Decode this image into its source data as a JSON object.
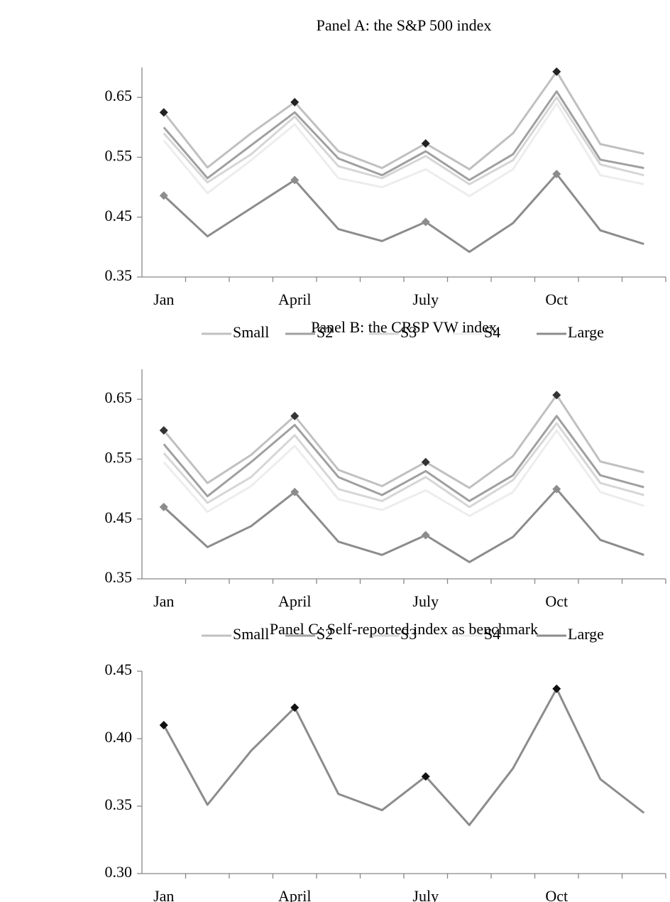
{
  "chart_data": [
    {
      "type": "line",
      "title": "Panel A: the S&P 500 index",
      "categories": [
        "Jan",
        null,
        null,
        "April",
        null,
        null,
        "July",
        null,
        null,
        "Oct",
        null,
        null
      ],
      "ylim": [
        0.35,
        0.7
      ],
      "yticks": [
        {
          "value": 0.35,
          "label": "0.35"
        },
        {
          "value": 0.45,
          "label": "0.45"
        },
        {
          "value": 0.55,
          "label": "0.55"
        },
        {
          "value": 0.65,
          "label": "0.65"
        }
      ],
      "legend": "bottom",
      "series": [
        {
          "name": "Small",
          "color": "#c0c0c0",
          "marker_color": "#222222",
          "values": [
            0.625,
            0.533,
            0.59,
            0.642,
            0.56,
            0.532,
            0.573,
            0.53,
            0.59,
            0.693,
            0.572,
            0.556
          ]
        },
        {
          "name": "S2",
          "color": "#a0a0a0",
          "values": [
            0.6,
            0.515,
            0.57,
            0.625,
            0.548,
            0.52,
            0.56,
            0.512,
            0.555,
            0.66,
            0.546,
            0.532
          ]
        },
        {
          "name": "S3",
          "color": "#d6d6d6",
          "values": [
            0.59,
            0.508,
            0.555,
            0.618,
            0.535,
            0.515,
            0.552,
            0.505,
            0.545,
            0.65,
            0.538,
            0.52
          ]
        },
        {
          "name": "S4",
          "color": "#ededed",
          "values": [
            0.578,
            0.49,
            0.545,
            0.605,
            0.515,
            0.5,
            0.53,
            0.485,
            0.53,
            0.64,
            0.52,
            0.505
          ]
        },
        {
          "name": "Large",
          "color": "#8c8c8c",
          "marker_color": "#8c8c8c",
          "values": [
            0.486,
            0.418,
            0.465,
            0.512,
            0.43,
            0.41,
            0.442,
            0.392,
            0.44,
            0.522,
            0.428,
            0.405
          ]
        }
      ]
    },
    {
      "type": "line",
      "title": "Panel B: the CRSP VW index",
      "categories": [
        "Jan",
        null,
        null,
        "April",
        null,
        null,
        "July",
        null,
        null,
        "Oct",
        null,
        null
      ],
      "ylim": [
        0.35,
        0.7
      ],
      "yticks": [
        {
          "value": 0.35,
          "label": "0.35"
        },
        {
          "value": 0.45,
          "label": "0.45"
        },
        {
          "value": 0.55,
          "label": "0.55"
        },
        {
          "value": 0.65,
          "label": "0.65"
        }
      ],
      "legend": "bottom",
      "series": [
        {
          "name": "Small",
          "color": "#c0c0c0",
          "marker_color": "#333333",
          "values": [
            0.598,
            0.51,
            0.557,
            0.622,
            0.532,
            0.505,
            0.545,
            0.502,
            0.555,
            0.657,
            0.546,
            0.528
          ]
        },
        {
          "name": "S2",
          "color": "#a0a0a0",
          "values": [
            0.575,
            0.488,
            0.545,
            0.607,
            0.52,
            0.49,
            0.53,
            0.48,
            0.523,
            0.622,
            0.523,
            0.503
          ]
        },
        {
          "name": "S3",
          "color": "#d6d6d6",
          "values": [
            0.56,
            0.477,
            0.52,
            0.59,
            0.5,
            0.48,
            0.52,
            0.47,
            0.515,
            0.61,
            0.51,
            0.49
          ]
        },
        {
          "name": "S4",
          "color": "#ededed",
          "values": [
            0.545,
            0.462,
            0.505,
            0.572,
            0.483,
            0.465,
            0.498,
            0.455,
            0.495,
            0.598,
            0.495,
            0.472
          ]
        },
        {
          "name": "Large",
          "color": "#8c8c8c",
          "marker_color": "#8c8c8c",
          "values": [
            0.47,
            0.403,
            0.438,
            0.495,
            0.412,
            0.39,
            0.423,
            0.378,
            0.42,
            0.5,
            0.415,
            0.39
          ]
        }
      ]
    },
    {
      "type": "line",
      "title": "Panel C: Self-reported index as benchmark",
      "categories": [
        "Jan",
        null,
        null,
        "April",
        null,
        null,
        "July",
        null,
        null,
        "Oct",
        null,
        null
      ],
      "ylim": [
        0.3,
        0.45
      ],
      "yticks": [
        {
          "value": 0.3,
          "label": "0.30"
        },
        {
          "value": 0.35,
          "label": "0.35"
        },
        {
          "value": 0.4,
          "label": "0.40"
        },
        {
          "value": 0.45,
          "label": "0.45"
        }
      ],
      "series": [
        {
          "color": "#8c8c8c",
          "marker_color": "#111111",
          "values": [
            0.41,
            0.351,
            0.391,
            0.423,
            0.359,
            0.347,
            0.372,
            0.336,
            0.378,
            0.437,
            0.37,
            0.345
          ]
        }
      ]
    }
  ]
}
